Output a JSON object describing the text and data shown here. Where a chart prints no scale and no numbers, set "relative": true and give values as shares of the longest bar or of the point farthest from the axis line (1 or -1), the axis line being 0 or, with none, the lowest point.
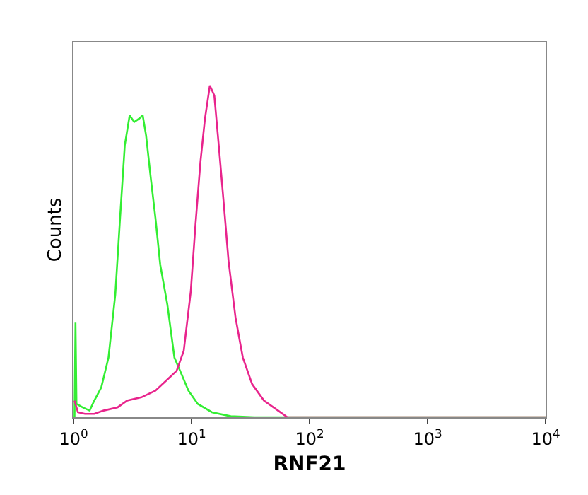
{
  "chart_data": {
    "type": "line",
    "xlabel": "RNF21",
    "ylabel": "Counts",
    "relative": true,
    "log": "x",
    "xlim": [
      1,
      10000
    ],
    "xticks": [
      {
        "value": 1,
        "label": "10$^{0}$"
      },
      {
        "value": 10,
        "label": "10$^{1}$"
      },
      {
        "value": 100,
        "label": "10$^{2}$"
      },
      {
        "value": 1000,
        "label": "10$^{3}$"
      },
      {
        "value": 10000,
        "label": "10$^{4}$"
      }
    ],
    "grid": false,
    "marker": "none",
    "line_style": "solid",
    "series": [
      {
        "color": "#33ee33",
        "x": [
          1.02,
          1.04,
          1.06,
          1.19,
          1.37,
          1.5,
          1.72,
          1.98,
          2.26,
          2.48,
          2.72,
          2.99,
          3.27,
          3.59,
          3.86,
          4.12,
          4.52,
          4.95,
          5.43,
          6.24,
          7.16,
          8.22,
          9.42,
          11.3,
          14.9,
          21.5,
          34.1,
          10000
        ],
        "values": [
          0,
          0.285,
          0.04,
          0.03,
          0.02,
          0.05,
          0.09,
          0.18,
          0.37,
          0.6,
          0.82,
          0.91,
          0.89,
          0.9,
          0.91,
          0.85,
          0.72,
          0.6,
          0.46,
          0.34,
          0.18,
          0.13,
          0.08,
          0.04,
          0.015,
          0.003,
          0,
          0
        ]
      },
      {
        "color": "#e8248c",
        "x": [
          1.02,
          1.09,
          1.25,
          1.5,
          1.8,
          2.37,
          2.85,
          3.76,
          4.95,
          6.52,
          7.48,
          8.59,
          9.86,
          10.8,
          11.9,
          13,
          14.3,
          15.6,
          17.1,
          18.8,
          20.6,
          23.6,
          27.2,
          32.6,
          41.1,
          54.1,
          64.9,
          10000
        ],
        "values": [
          0.05,
          0.015,
          0.01,
          0.01,
          0.02,
          0.03,
          0.05,
          0.06,
          0.08,
          0.12,
          0.14,
          0.2,
          0.38,
          0.58,
          0.77,
          0.9,
          1.0,
          0.97,
          0.81,
          0.64,
          0.47,
          0.3,
          0.18,
          0.1,
          0.05,
          0.02,
          0,
          0
        ]
      }
    ]
  }
}
